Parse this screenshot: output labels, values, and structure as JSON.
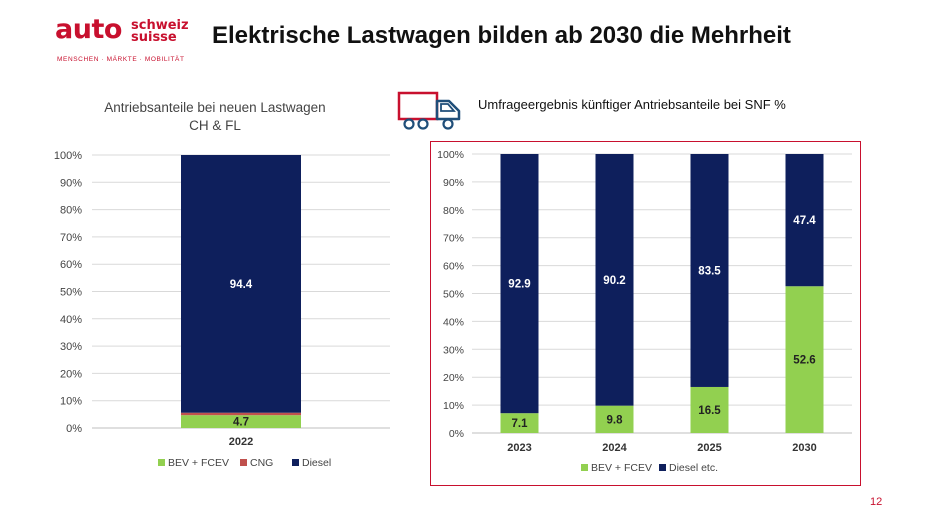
{
  "logo": {
    "auto": "auto",
    "schweiz": "schweiz",
    "suisse": "suisse",
    "tagline": "MENSCHEN · MÄRKTE · MOBILITÄT"
  },
  "slide_title": "Elektrische Lastwagen bilden ab 2030 die Mehrheit",
  "page_number": "12",
  "colors": {
    "bev_fcev": "#92d050",
    "cng": "#c0504d",
    "diesel": "#0e1f5c",
    "accent": "#c8102e"
  },
  "icons": [
    "truck-icon"
  ],
  "chart_data": [
    {
      "type": "bar",
      "stacked": true,
      "title_line1": "Antriebsanteile bei neuen Lastwagen",
      "title_line2": "CH & FL",
      "categories": [
        "2022"
      ],
      "series": [
        {
          "name": "BEV + FCEV",
          "values": [
            4.7
          ],
          "color": "#92d050",
          "labels": [
            "4.7"
          ]
        },
        {
          "name": "CNG",
          "values": [
            0.9
          ],
          "color": "#c0504d",
          "labels": [
            ""
          ]
        },
        {
          "name": "Diesel",
          "values": [
            94.4
          ],
          "color": "#0e1f5c",
          "labels": [
            "94.4"
          ]
        }
      ],
      "ylim": [
        0,
        100
      ],
      "yticks": [
        "0%",
        "10%",
        "20%",
        "30%",
        "40%",
        "50%",
        "60%",
        "70%",
        "80%",
        "90%",
        "100%"
      ],
      "grid": true,
      "legend": "bottom"
    },
    {
      "type": "bar",
      "stacked": true,
      "title": "Umfrageergebnis künftiger Antriebsanteile bei SNF %",
      "categories": [
        "2023",
        "2024",
        "2025",
        "2030"
      ],
      "series": [
        {
          "name": "BEV + FCEV",
          "values": [
            7.1,
            9.8,
            16.5,
            52.6
          ],
          "color": "#92d050",
          "labels": [
            "7.1",
            "9.8",
            "16.5",
            "52.6"
          ]
        },
        {
          "name": "Diesel etc.",
          "values": [
            92.9,
            90.2,
            83.5,
            47.4
          ],
          "color": "#0e1f5c",
          "labels": [
            "92.9",
            "90.2",
            "83.5",
            "47.4"
          ]
        }
      ],
      "ylim": [
        0,
        100
      ],
      "yticks": [
        "0%",
        "10%",
        "20%",
        "30%",
        "40%",
        "50%",
        "60%",
        "70%",
        "80%",
        "90%",
        "100%"
      ],
      "grid": true,
      "legend": "bottom"
    }
  ]
}
